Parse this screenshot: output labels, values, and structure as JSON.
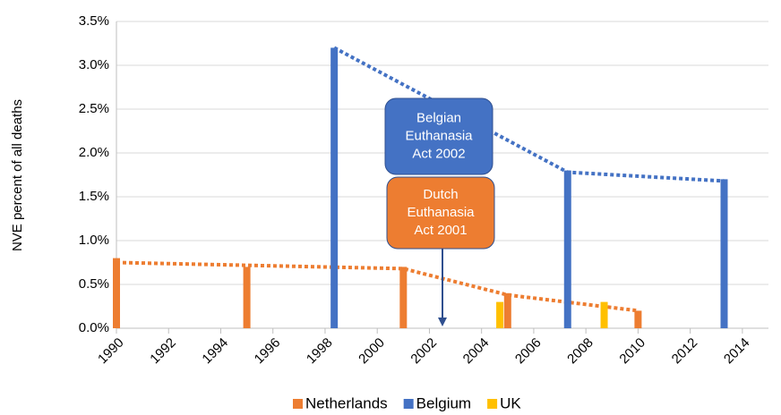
{
  "chart_data": {
    "type": "bar",
    "ylabel": "NVE percent of all deaths",
    "xlim": [
      1990,
      2015
    ],
    "xticks": [
      1990,
      1992,
      1994,
      1996,
      1998,
      2000,
      2002,
      2004,
      2006,
      2008,
      2010,
      2012,
      2014
    ],
    "ylim": [
      0,
      3.5
    ],
    "yticks": [
      {
        "value": 0,
        "label": "0.0%"
      },
      {
        "value": 0.5,
        "label": "0.5%"
      },
      {
        "value": 1,
        "label": "1.0%"
      },
      {
        "value": 1.5,
        "label": "1.5%"
      },
      {
        "value": 2,
        "label": "2.0%"
      },
      {
        "value": 2.5,
        "label": "2.5%"
      },
      {
        "value": 3,
        "label": "3.0%"
      },
      {
        "value": 3.5,
        "label": "3.5%"
      }
    ],
    "grid": true,
    "legend": "bottom",
    "series": [
      {
        "name": "Netherlands",
        "color": "#ed7d31",
        "x": [
          1990,
          1995,
          2001,
          2005,
          2010
        ],
        "values": [
          0.8,
          0.7,
          0.7,
          0.4,
          0.2
        ],
        "trend": {
          "x": [
            1990,
            2001,
            2005,
            2010
          ],
          "values": [
            0.75,
            0.68,
            0.38,
            0.2
          ]
        }
      },
      {
        "name": "Belgium",
        "color": "#4472c4",
        "x": [
          1998.35,
          2007.3,
          2013.3
        ],
        "values": [
          3.2,
          1.8,
          1.7
        ],
        "trend": {
          "x": [
            1998.35,
            2007.3,
            2013.3
          ],
          "values": [
            3.2,
            1.78,
            1.68
          ]
        }
      },
      {
        "name": "UK",
        "color": "#ffc000",
        "x": [
          2004.7,
          2008.7
        ],
        "values": [
          0.3,
          0.3
        ]
      }
    ],
    "annotations": [
      {
        "lines": [
          "Belgian",
          "Euthanasia",
          "Act 2002"
        ],
        "color": "#4472c4"
      },
      {
        "lines": [
          "Dutch",
          "Euthanasia",
          "Act 2001"
        ],
        "color": "#ed7d31",
        "arrow_x": 2002.5
      }
    ]
  }
}
